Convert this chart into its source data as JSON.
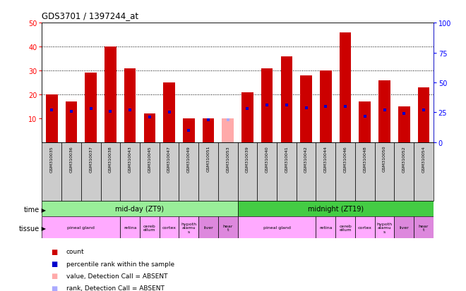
{
  "title": "GDS3701 / 1397244_at",
  "samples": [
    "GSM310035",
    "GSM310036",
    "GSM310037",
    "GSM310038",
    "GSM310043",
    "GSM310045",
    "GSM310047",
    "GSM310049",
    "GSM310051",
    "GSM310053",
    "GSM310039",
    "GSM310040",
    "GSM310041",
    "GSM310042",
    "GSM310044",
    "GSM310046",
    "GSM310048",
    "GSM310050",
    "GSM310052",
    "GSM310054"
  ],
  "bar_values": [
    20,
    17,
    29,
    40,
    31,
    12,
    25,
    10,
    10,
    10,
    21,
    31,
    36,
    28,
    30,
    46,
    17,
    26,
    15,
    23
  ],
  "bar_absent": [
    false,
    false,
    false,
    false,
    false,
    false,
    false,
    false,
    false,
    true,
    false,
    false,
    false,
    false,
    false,
    false,
    false,
    false,
    false,
    false
  ],
  "rank_values": [
    27,
    26,
    28,
    26,
    27,
    21,
    25,
    10,
    19,
    19,
    28,
    31,
    31,
    29,
    30,
    30,
    22,
    27,
    24,
    27
  ],
  "rank_absent": [
    false,
    false,
    false,
    false,
    false,
    false,
    false,
    false,
    false,
    true,
    false,
    false,
    false,
    false,
    false,
    false,
    false,
    false,
    false,
    false
  ],
  "ylim_left": [
    0,
    50
  ],
  "ylim_right": [
    0,
    100
  ],
  "yticks_left": [
    10,
    20,
    30,
    40,
    50
  ],
  "yticks_right": [
    0,
    25,
    50,
    75,
    100
  ],
  "bar_color": "#cc0000",
  "bar_absent_color": "#ffaaaa",
  "rank_color": "#0000cc",
  "rank_absent_color": "#aaaaff",
  "time_groups": [
    {
      "label": "mid-day (ZT9)",
      "start": 0,
      "end": 10,
      "color": "#99ee99"
    },
    {
      "label": "midnight (ZT19)",
      "start": 10,
      "end": 20,
      "color": "#44cc44"
    }
  ],
  "tissue_groups": [
    {
      "label": "pineal gland",
      "start": 0,
      "end": 4,
      "color": "#ffaaff"
    },
    {
      "label": "retina",
      "start": 4,
      "end": 5,
      "color": "#ffaaff"
    },
    {
      "label": "cereb\nellum",
      "start": 5,
      "end": 6,
      "color": "#ffaaff"
    },
    {
      "label": "cortex",
      "start": 6,
      "end": 7,
      "color": "#ffaaff"
    },
    {
      "label": "hypoth\nalamu\ns",
      "start": 7,
      "end": 8,
      "color": "#ffaaff"
    },
    {
      "label": "liver",
      "start": 8,
      "end": 9,
      "color": "#dd88dd"
    },
    {
      "label": "hear\nt",
      "start": 9,
      "end": 10,
      "color": "#dd88dd"
    },
    {
      "label": "pineal gland",
      "start": 10,
      "end": 14,
      "color": "#ffaaff"
    },
    {
      "label": "retina",
      "start": 14,
      "end": 15,
      "color": "#ffaaff"
    },
    {
      "label": "cereb\nellum",
      "start": 15,
      "end": 16,
      "color": "#ffaaff"
    },
    {
      "label": "cortex",
      "start": 16,
      "end": 17,
      "color": "#ffaaff"
    },
    {
      "label": "hypoth\nalamu\ns",
      "start": 17,
      "end": 18,
      "color": "#ffaaff"
    },
    {
      "label": "liver",
      "start": 18,
      "end": 19,
      "color": "#dd88dd"
    },
    {
      "label": "hear\nt",
      "start": 19,
      "end": 20,
      "color": "#dd88dd"
    }
  ],
  "background_color": "#ffffff",
  "tick_label_area_color": "#cccccc",
  "legend_items": [
    {
      "label": "count",
      "color": "#cc0000",
      "marker": "s"
    },
    {
      "label": "percentile rank within the sample",
      "color": "#0000cc",
      "marker": "s"
    },
    {
      "label": "value, Detection Call = ABSENT",
      "color": "#ffaaaa",
      "marker": "s"
    },
    {
      "label": "rank, Detection Call = ABSENT",
      "color": "#aaaaff",
      "marker": "s"
    }
  ]
}
